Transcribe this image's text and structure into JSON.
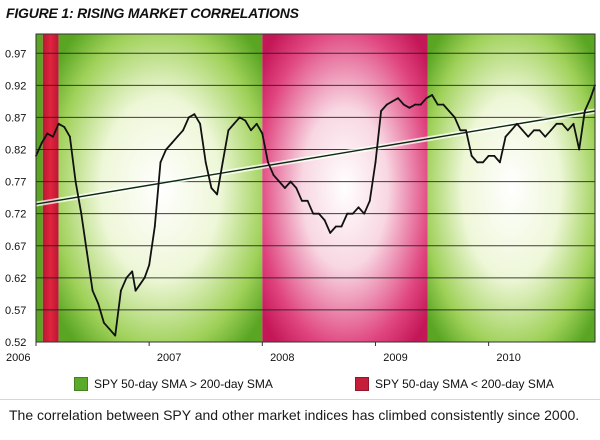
{
  "chart_data": {
    "type": "line",
    "title": "FIGURE 1: RISING MARKET CORRELATIONS",
    "xlabel": "",
    "ylabel": "",
    "x_ticks": [
      "2006",
      "2007",
      "2008",
      "2009",
      "2010"
    ],
    "x_range": [
      2006.0,
      2010.94
    ],
    "y_ticks": [
      0.52,
      0.57,
      0.62,
      0.67,
      0.72,
      0.77,
      0.82,
      0.87,
      0.92,
      0.97
    ],
    "ylim": [
      0.52,
      1.0
    ],
    "grid": true,
    "regimes": [
      {
        "start": 2006.0,
        "end": 2006.06,
        "state": "up"
      },
      {
        "start": 2006.06,
        "end": 2006.2,
        "state": "down"
      },
      {
        "start": 2006.2,
        "end": 2008.0,
        "state": "up"
      },
      {
        "start": 2008.0,
        "end": 2009.46,
        "state": "down"
      },
      {
        "start": 2009.46,
        "end": 2010.94,
        "state": "up"
      }
    ],
    "series": [
      {
        "name": "",
        "x": [
          2006.0,
          2006.05,
          2006.1,
          2006.15,
          2006.2,
          2006.25,
          2006.3,
          2006.35,
          2006.4,
          2006.45,
          2006.5,
          2006.55,
          2006.6,
          2006.65,
          2006.7,
          2006.75,
          2006.8,
          2006.85,
          2006.88,
          2006.92,
          2006.96,
          2007.0,
          2007.05,
          2007.1,
          2007.15,
          2007.2,
          2007.25,
          2007.3,
          2007.35,
          2007.4,
          2007.45,
          2007.5,
          2007.55,
          2007.6,
          2007.65,
          2007.7,
          2007.75,
          2007.8,
          2007.85,
          2007.9,
          2007.95,
          2008.0,
          2008.05,
          2008.1,
          2008.15,
          2008.2,
          2008.25,
          2008.3,
          2008.35,
          2008.4,
          2008.45,
          2008.5,
          2008.55,
          2008.6,
          2008.65,
          2008.7,
          2008.75,
          2008.8,
          2008.85,
          2008.9,
          2008.95,
          2009.0,
          2009.05,
          2009.1,
          2009.15,
          2009.2,
          2009.25,
          2009.3,
          2009.35,
          2009.4,
          2009.45,
          2009.5,
          2009.55,
          2009.6,
          2009.65,
          2009.7,
          2009.75,
          2009.8,
          2009.85,
          2009.9,
          2009.95,
          2010.0,
          2010.05,
          2010.1,
          2010.15,
          2010.2,
          2010.25,
          2010.3,
          2010.35,
          2010.4,
          2010.45,
          2010.5,
          2010.55,
          2010.6,
          2010.65,
          2010.7,
          2010.75,
          2010.8,
          2010.85,
          2010.9,
          2010.94
        ],
        "values": [
          0.81,
          0.83,
          0.845,
          0.84,
          0.86,
          0.855,
          0.84,
          0.77,
          0.72,
          0.66,
          0.6,
          0.58,
          0.55,
          0.54,
          0.53,
          0.6,
          0.62,
          0.63,
          0.6,
          0.61,
          0.62,
          0.64,
          0.7,
          0.8,
          0.82,
          0.83,
          0.84,
          0.85,
          0.87,
          0.875,
          0.86,
          0.8,
          0.76,
          0.75,
          0.8,
          0.85,
          0.86,
          0.87,
          0.865,
          0.85,
          0.86,
          0.845,
          0.8,
          0.78,
          0.77,
          0.76,
          0.77,
          0.76,
          0.74,
          0.74,
          0.72,
          0.72,
          0.71,
          0.69,
          0.7,
          0.7,
          0.72,
          0.72,
          0.73,
          0.72,
          0.74,
          0.8,
          0.88,
          0.89,
          0.895,
          0.9,
          0.89,
          0.885,
          0.89,
          0.89,
          0.9,
          0.905,
          0.89,
          0.89,
          0.88,
          0.87,
          0.85,
          0.85,
          0.81,
          0.8,
          0.8,
          0.81,
          0.81,
          0.8,
          0.84,
          0.85,
          0.86,
          0.85,
          0.84,
          0.85,
          0.85,
          0.84,
          0.85,
          0.86,
          0.86,
          0.85,
          0.86,
          0.82,
          0.88,
          0.9,
          0.92
        ]
      }
    ],
    "trendline": {
      "x": [
        2006.0,
        2010.94
      ],
      "y": [
        0.735,
        0.88
      ]
    },
    "legend": [
      {
        "label": "SPY 50-day SMA > 200-day SMA",
        "color": "#5aab2b"
      },
      {
        "label": "SPY 50-day SMA < 200-day SMA",
        "color": "#c41e3a"
      }
    ],
    "legend_position": "bottom"
  },
  "caption": "The correlation between SPY and other market indices has climbed consistently since 2000.",
  "colors": {
    "up_band": "#7ec242",
    "down_band": "#d81b60",
    "line": "#111111",
    "grid": "#222222"
  }
}
